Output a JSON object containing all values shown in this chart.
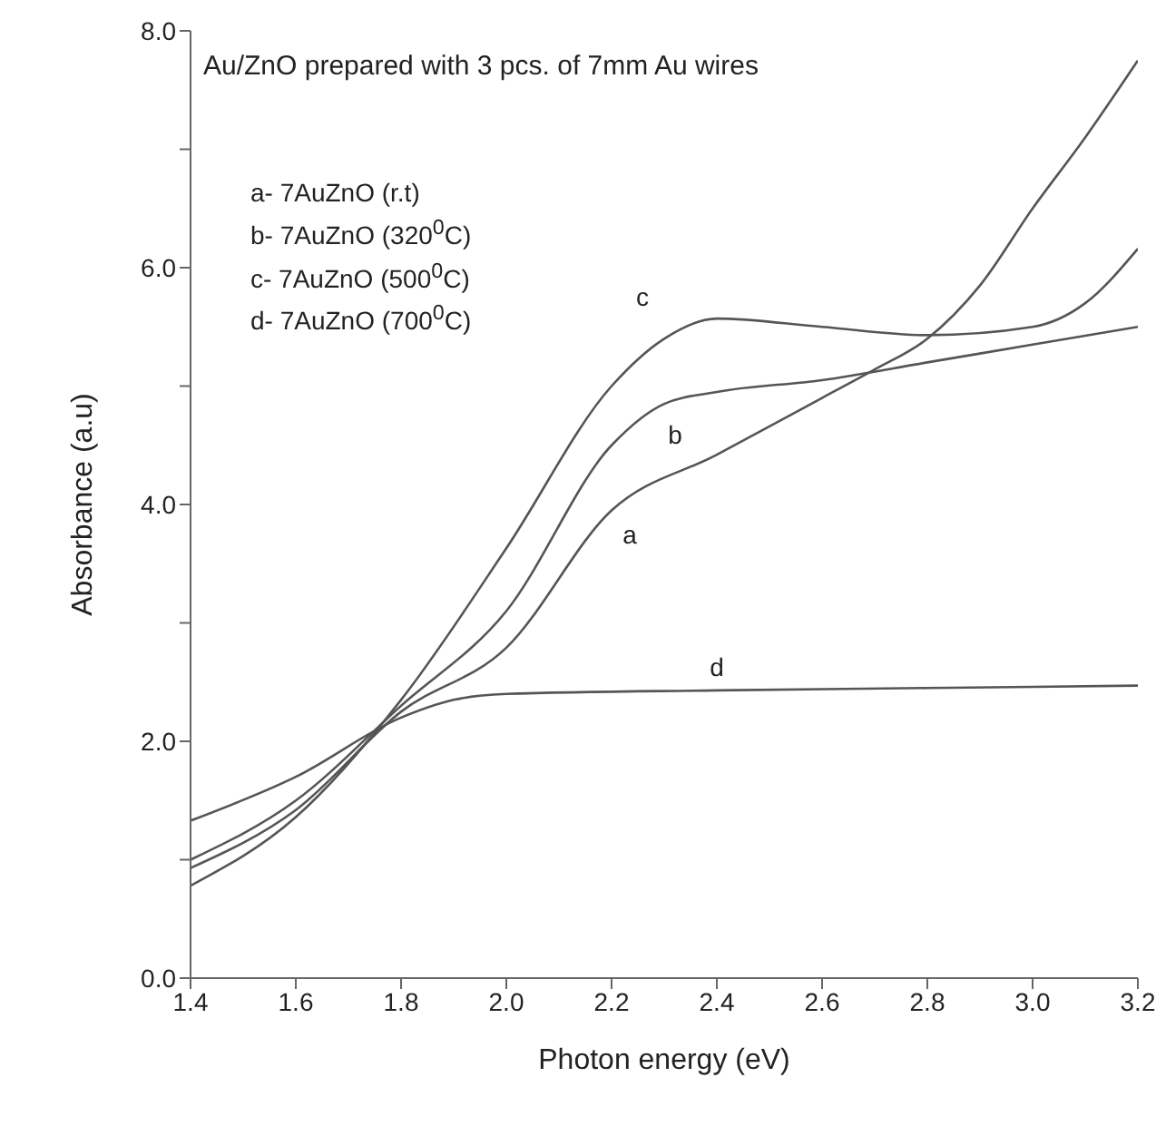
{
  "chart_data": {
    "type": "line",
    "title": "Au/ZnO prepared with 3 pcs. of 7mm Au wires",
    "xlabel": "Photon energy (eV)",
    "ylabel": "Absorbance (a.u)",
    "annotations": [
      "a- 7AuZnO (r.t)",
      "b- 7AuZnO (320$^{0}$C)",
      "c- 7AuZnO (500$^{0}$C)",
      "d- 7AuZnO (700$^{0}$C)"
    ],
    "xlim": [
      1.4,
      3.2
    ],
    "xticks": [
      1.4,
      1.6,
      1.8,
      {
        "value": 2,
        "label": "2.0"
      },
      2.2,
      2.4,
      2.6,
      2.8,
      {
        "value": 3,
        "label": "3.0"
      },
      3.2
    ],
    "ylim": [
      0,
      8
    ],
    "yticks": [
      {
        "value": 0,
        "label": "0.0"
      },
      {
        "value": 1,
        "label": null
      },
      {
        "value": 2,
        "label": "2.0"
      },
      {
        "value": 3,
        "label": null
      },
      {
        "value": 4,
        "label": "4.0"
      },
      {
        "value": 5,
        "label": null
      },
      {
        "value": 6,
        "label": "6.0"
      },
      {
        "value": 7,
        "label": null
      },
      {
        "value": 8,
        "label": "8.0"
      }
    ],
    "grid": false,
    "legend": false,
    "marker": "none",
    "line_style": "solid",
    "series": [
      {
        "name": "a",
        "color": "#555555",
        "x": [
          1.4,
          1.6,
          1.8,
          2.0,
          2.2,
          2.4,
          2.6,
          2.7,
          2.8,
          2.9,
          3.0,
          3.1,
          3.2
        ],
        "values": [
          0.93,
          1.42,
          2.25,
          2.79,
          3.95,
          4.42,
          4.9,
          5.14,
          5.4,
          5.85,
          6.5,
          7.1,
          7.75
        ]
      },
      {
        "name": "b",
        "color": "#555555",
        "x": [
          1.4,
          1.6,
          1.8,
          2.0,
          2.2,
          2.3,
          2.4,
          2.6,
          2.8,
          3.0,
          3.2
        ],
        "values": [
          1.0,
          1.5,
          2.3,
          3.1,
          4.5,
          4.85,
          4.95,
          5.05,
          5.2,
          5.35,
          5.5
        ]
      },
      {
        "name": "c",
        "color": "#555555",
        "x": [
          1.4,
          1.6,
          1.8,
          2.0,
          2.2,
          2.3,
          2.4,
          2.6,
          2.8,
          3.0,
          3.1,
          3.2
        ],
        "values": [
          0.78,
          1.36,
          2.35,
          3.63,
          5.0,
          5.4,
          5.57,
          5.5,
          5.43,
          5.5,
          5.7,
          6.16
        ]
      },
      {
        "name": "d",
        "color": "#555555",
        "x": [
          1.4,
          1.6,
          1.8,
          1.9,
          2.0,
          2.4,
          2.8,
          3.2
        ],
        "values": [
          1.33,
          1.7,
          2.2,
          2.35,
          2.4,
          2.43,
          2.45,
          2.47
        ]
      }
    ]
  }
}
